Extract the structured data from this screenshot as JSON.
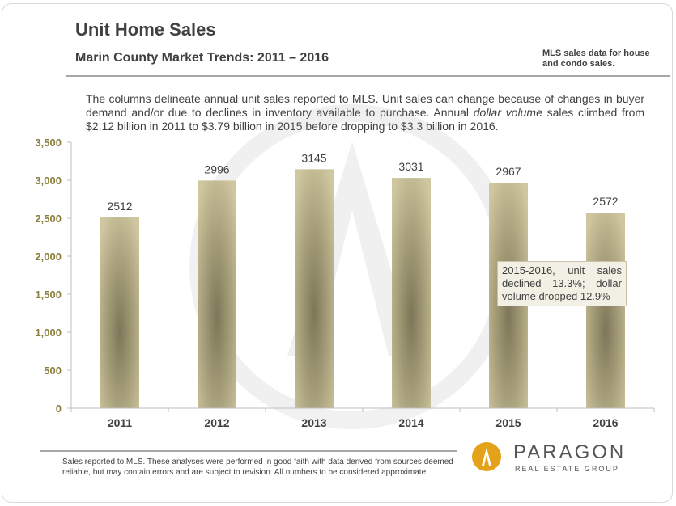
{
  "header": {
    "title": "Unit Home Sales",
    "subtitle": "Marin County Market Trends: 2011 – 2016",
    "note": "MLS sales data for house and condo sales."
  },
  "intro": {
    "part1": "The columns delineate annual unit sales reported to MLS. Unit sales can change because of changes in buyer demand and/or due to declines in inventory available to purchase. Annual ",
    "italic": "dollar volume",
    "part2": " sales climbed from $2.12 billion in 2011 to $3.79 billion in 2015 before dropping to $3.3 billion in 2016."
  },
  "callout": "2015-2016, unit sales declined 13.3%; dollar volume dropped 12.9%",
  "footer": "Sales reported to MLS. These analyses were performed in good faith with data derived from sources deemed reliable, but may contain errors and are subject to revision. All numbers to be considered approximate.",
  "logo": {
    "name": "PARAGON",
    "sub": "REAL ESTATE GROUP"
  },
  "colors": {
    "bar": "#c2b98f",
    "bar_dark": "#8f8768",
    "axis_label": "#8a7e3c",
    "text": "#404040"
  },
  "chart_data": {
    "type": "bar",
    "categories": [
      "2011",
      "2012",
      "2013",
      "2014",
      "2015",
      "2016"
    ],
    "values": [
      2512,
      2996,
      3145,
      3031,
      2967,
      2572
    ],
    "ylim": [
      0,
      3500
    ],
    "yticks": [
      0,
      500,
      1000,
      1500,
      2000,
      2500,
      3000,
      3500
    ],
    "ytick_labels": [
      "0",
      "500",
      "1,000",
      "1,500",
      "2,000",
      "2,500",
      "3,000",
      "3,500"
    ],
    "data_labels": [
      "2512",
      "2996",
      "3145",
      "3031",
      "2967",
      "2572"
    ],
    "title": "",
    "xlabel": "",
    "ylabel": "",
    "grid": false
  }
}
